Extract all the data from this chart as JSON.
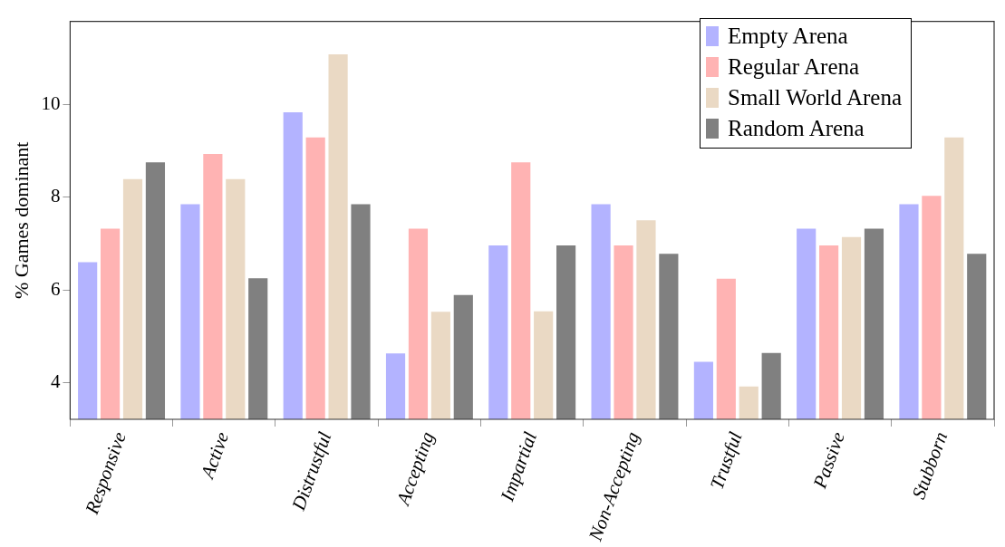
{
  "chart_data": {
    "type": "bar",
    "ylabel": "% Games dominant",
    "categories": [
      "Responsive",
      "Active",
      "Distrustful",
      "Accepting",
      "Impartial",
      "Non-Accepting",
      "Trustful",
      "Passive",
      "Stubborn"
    ],
    "series": [
      {
        "name": "Empty Arena",
        "color": "#b3b3ff",
        "values": [
          6.6,
          7.85,
          9.83,
          4.63,
          6.96,
          7.85,
          4.45,
          7.32,
          7.85
        ]
      },
      {
        "name": "Regular Arena",
        "color": "#ffb3b3",
        "values": [
          7.32,
          8.93,
          9.29,
          7.32,
          8.75,
          6.96,
          6.24,
          6.96,
          8.03
        ]
      },
      {
        "name": "Small World Arena",
        "color": "#ead9c4",
        "values": [
          8.39,
          8.39,
          11.08,
          5.53,
          5.54,
          7.5,
          3.92,
          7.14,
          9.29
        ]
      },
      {
        "name": "Random Arena",
        "color": "#808080",
        "values": [
          8.75,
          6.25,
          7.85,
          5.89,
          6.96,
          6.78,
          4.64,
          7.32,
          6.78
        ]
      }
    ],
    "ylim": [
      3.21,
      11.79
    ],
    "yticks": [
      4,
      6,
      8,
      10
    ],
    "grid": false,
    "legend": "top right"
  }
}
